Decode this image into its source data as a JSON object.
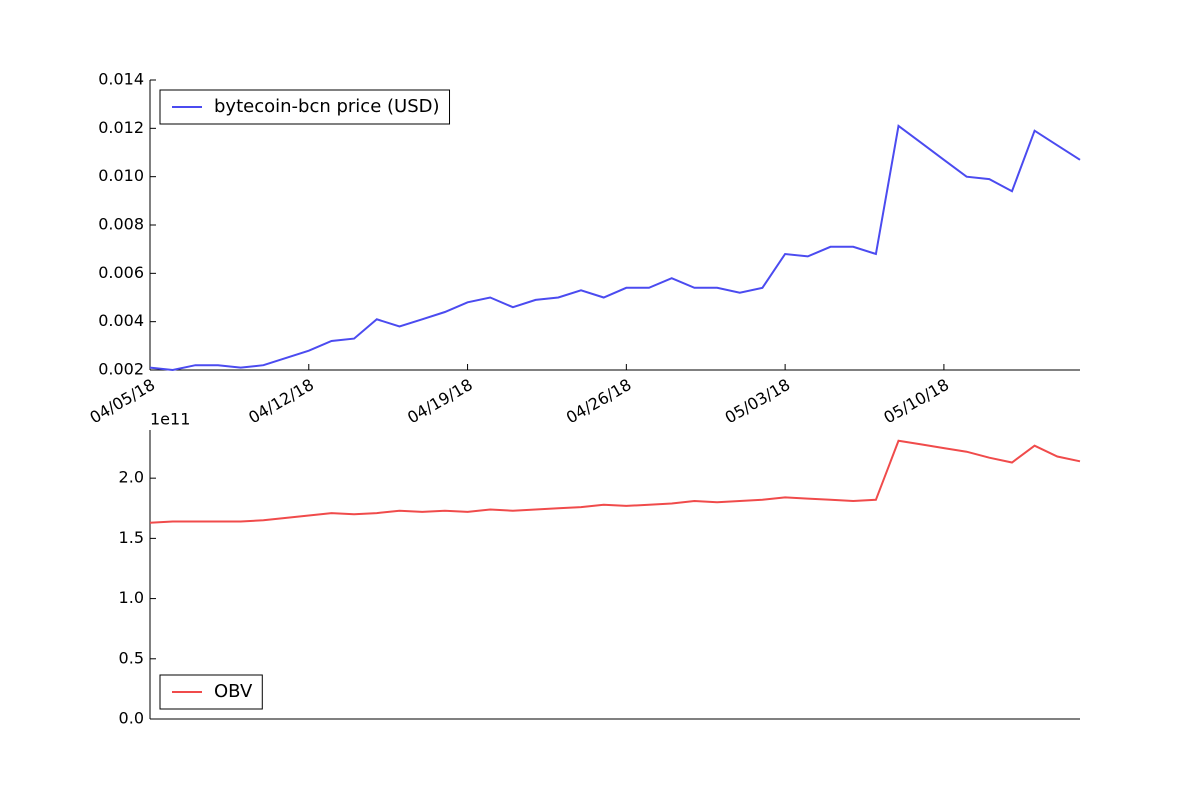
{
  "chart_data": [
    {
      "type": "line",
      "legend": "upper left",
      "x": [
        "04/05/18",
        "04/06/18",
        "04/07/18",
        "04/08/18",
        "04/09/18",
        "04/10/18",
        "04/11/18",
        "04/12/18",
        "04/13/18",
        "04/14/18",
        "04/15/18",
        "04/16/18",
        "04/17/18",
        "04/18/18",
        "04/19/18",
        "04/20/18",
        "04/21/18",
        "04/22/18",
        "04/23/18",
        "04/24/18",
        "04/25/18",
        "04/26/18",
        "04/27/18",
        "04/28/18",
        "04/29/18",
        "04/30/18",
        "05/01/18",
        "05/02/18",
        "05/03/18",
        "05/04/18",
        "05/05/18",
        "05/06/18",
        "05/07/18",
        "05/08/18",
        "05/09/18",
        "05/10/18",
        "05/11/18",
        "05/12/18",
        "05/13/18",
        "05/14/18",
        "05/15/18",
        "05/16/18"
      ],
      "xlim": [
        "04/05/18",
        "05/16/18"
      ],
      "xticks": [
        "04/05/18",
        "04/12/18",
        "04/19/18",
        "04/26/18",
        "05/03/18",
        "05/10/18"
      ],
      "ylim": [
        0.002,
        0.014
      ],
      "yticks": [
        0.002,
        0.004,
        0.006,
        0.008,
        {
          "value": 0.01,
          "label": "0.010"
        },
        0.012,
        0.014
      ],
      "series": [
        {
          "name": "bytecoin-bcn price (USD)",
          "color": "#4b4bf0",
          "values": [
            0.0021,
            0.002,
            0.0022,
            0.0022,
            0.0021,
            0.0022,
            0.0025,
            0.0028,
            0.0032,
            0.0033,
            0.0041,
            0.0038,
            0.0041,
            0.0044,
            0.0048,
            0.005,
            0.0046,
            0.0049,
            0.005,
            0.0053,
            0.005,
            0.0054,
            0.0054,
            0.0058,
            0.0054,
            0.0054,
            0.0052,
            0.0054,
            0.0068,
            0.0067,
            0.0071,
            0.0071,
            0.0068,
            0.0121,
            0.0114,
            0.0107,
            0.01,
            0.0099,
            0.0094,
            0.0119,
            0.0113,
            0.0107
          ]
        }
      ]
    },
    {
      "type": "line",
      "legend": "lower left",
      "y_offset_label": "1e11",
      "x": [
        "04/05/18",
        "04/06/18",
        "04/07/18",
        "04/08/18",
        "04/09/18",
        "04/10/18",
        "04/11/18",
        "04/12/18",
        "04/13/18",
        "04/14/18",
        "04/15/18",
        "04/16/18",
        "04/17/18",
        "04/18/18",
        "04/19/18",
        "04/20/18",
        "04/21/18",
        "04/22/18",
        "04/23/18",
        "04/24/18",
        "04/25/18",
        "04/26/18",
        "04/27/18",
        "04/28/18",
        "04/29/18",
        "04/30/18",
        "05/01/18",
        "05/02/18",
        "05/03/18",
        "05/04/18",
        "05/05/18",
        "05/06/18",
        "05/07/18",
        "05/08/18",
        "05/09/18",
        "05/10/18",
        "05/11/18",
        "05/12/18",
        "05/13/18",
        "05/14/18",
        "05/15/18",
        "05/16/18"
      ],
      "xlim": [
        "04/05/18",
        "05/16/18"
      ],
      "ylim": [
        0,
        2.4
      ],
      "yticks": [
        {
          "value": 0,
          "label": "0.0"
        },
        0.5,
        {
          "value": 1,
          "label": "1.0"
        },
        1.5,
        {
          "value": 2,
          "label": "2.0"
        }
      ],
      "series": [
        {
          "name": "OBV",
          "color": "#f04b4b",
          "values": [
            1.63,
            1.64,
            1.64,
            1.64,
            1.64,
            1.65,
            1.67,
            1.69,
            1.71,
            1.7,
            1.71,
            1.73,
            1.72,
            1.73,
            1.72,
            1.74,
            1.73,
            1.74,
            1.75,
            1.76,
            1.78,
            1.77,
            1.78,
            1.79,
            1.81,
            1.8,
            1.81,
            1.82,
            1.84,
            1.83,
            1.82,
            1.81,
            1.82,
            2.31,
            2.28,
            2.25,
            2.22,
            2.17,
            2.13,
            2.27,
            2.18,
            2.14
          ]
        }
      ]
    }
  ]
}
